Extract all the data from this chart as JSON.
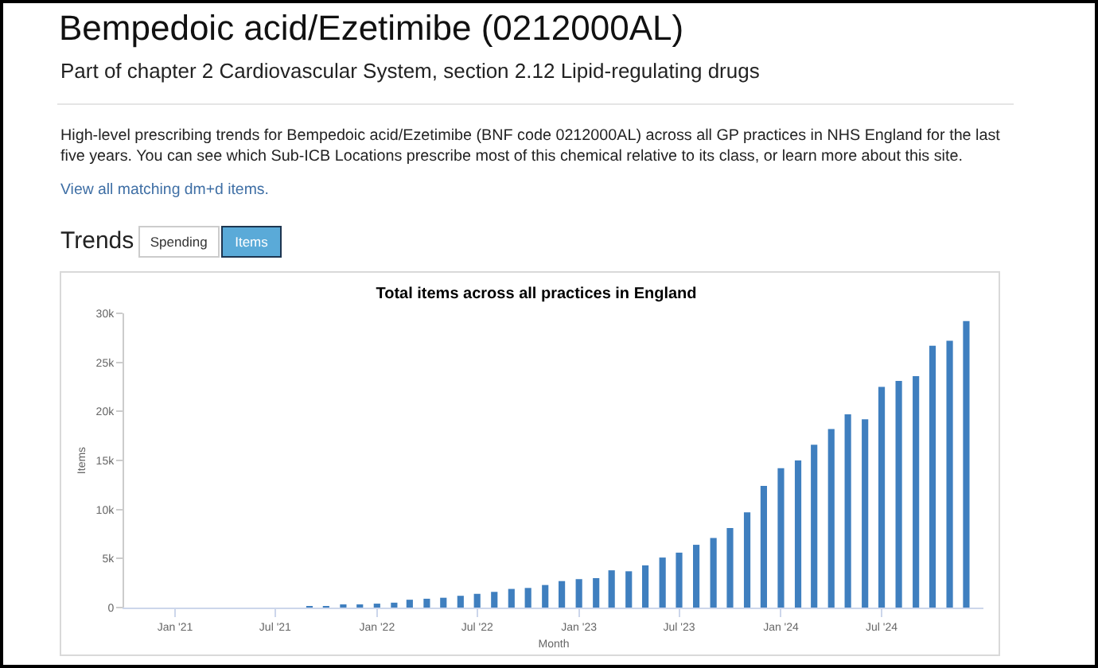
{
  "chart_data": {
    "type": "bar",
    "title": "Total items across all practices in England",
    "xlabel": "Month",
    "ylabel": "Items",
    "annotations": [
      "Bempedoic acid/Ezetimibe (0212000AL)",
      "Part of chapter 2 Cardiovascular System, section 2.12 Lipid-regulating drugs",
      "High-level prescribing trends for Bempedoic acid/Ezetimibe (BNF code 0212000AL) across all GP practices in NHS England for the last five years. You can see which Sub-ICB Locations prescribe most of this chemical relative to its class, or learn more about this site.",
      "View all matching dm+d items.",
      "Trends",
      "Spending",
      "Items"
    ],
    "x": [
      "2021-09",
      "2021-10",
      "2021-11",
      "2021-12",
      "2022-01",
      "2022-02",
      "2022-03",
      "2022-04",
      "2022-05",
      "2022-06",
      "2022-07",
      "2022-08",
      "2022-09",
      "2022-10",
      "2022-11",
      "2022-12",
      "2023-01",
      "2023-02",
      "2023-03",
      "2023-04",
      "2023-05",
      "2023-06",
      "2023-07",
      "2023-08",
      "2023-09",
      "2023-10",
      "2023-11",
      "2023-12",
      "2024-01",
      "2024-02",
      "2024-03",
      "2024-04",
      "2024-05",
      "2024-06",
      "2024-07",
      "2024-08",
      "2024-09",
      "2024-10",
      "2024-11",
      "2024-12"
    ],
    "values": [
      100,
      100,
      200,
      300,
      400,
      500,
      800,
      900,
      1000,
      1200,
      1400,
      1600,
      1900,
      2000,
      2300,
      2700,
      2900,
      3000,
      3800,
      3700,
      4300,
      5100,
      5600,
      6400,
      7100,
      8100,
      9700,
      12400,
      14200,
      15000,
      16600,
      18200,
      19700,
      19200,
      22500,
      23100,
      23600,
      26700,
      27200,
      29200
    ],
    "color": "#3f7fbf",
    "xlim": [
      "2020-10",
      "2025-01"
    ],
    "xticks": [
      {
        "value": "2021-01",
        "label": "Jan '21"
      },
      {
        "value": "2021-07",
        "label": "Jul '21"
      },
      {
        "value": "2022-01",
        "label": "Jan '22"
      },
      {
        "value": "2022-07",
        "label": "Jul '22"
      },
      {
        "value": "2023-01",
        "label": "Jan '23"
      },
      {
        "value": "2023-07",
        "label": "Jul '23"
      },
      {
        "value": "2024-01",
        "label": "Jan '24"
      },
      {
        "value": "2024-07",
        "label": "Jul '24"
      }
    ],
    "ylim": [
      0,
      30000
    ],
    "yticks": [
      0,
      {
        "value": 5000,
        "label": "5k"
      },
      {
        "value": 10000,
        "label": "10k"
      },
      {
        "value": 15000,
        "label": "15k"
      },
      {
        "value": 20000,
        "label": "20k"
      },
      {
        "value": 25000,
        "label": "25k"
      },
      {
        "value": 30000,
        "label": "30k"
      }
    ],
    "grid": false
  }
}
